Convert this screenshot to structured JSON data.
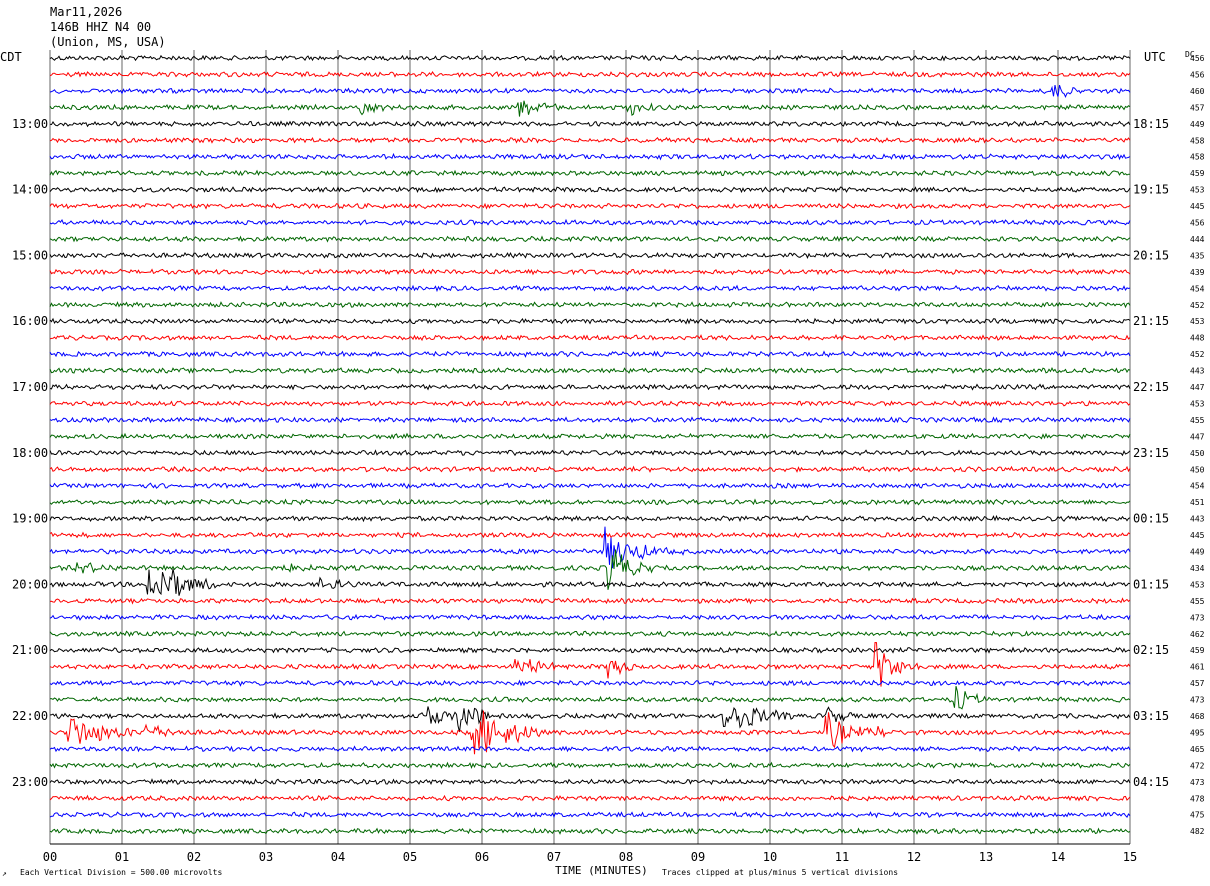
{
  "header": {
    "date": "Mar11,2026",
    "station": "146B HHZ N4 00",
    "location": "(Union, MS, USA)"
  },
  "labels": {
    "left_timezone": "CDT",
    "right_timezone": "UTC",
    "dc_header": "DC",
    "x_axis_title": "TIME (MINUTES)",
    "scale_note": "Each Vertical Division =  500.00 microvolts",
    "clip_note": "Traces clipped at plus/minus 5 vertical divisions"
  },
  "colors": {
    "trace_cycle": [
      "#000000",
      "#ff0000",
      "#0000ff",
      "#006600"
    ],
    "grid": "#000000",
    "background": "#ffffff"
  },
  "chart_data": {
    "type": "line",
    "description_type": "helicorder",
    "traces_per_hour": 4,
    "minutes_per_trace": 15,
    "xlim": [
      0,
      15
    ],
    "x_ticks": [
      "00",
      "01",
      "02",
      "03",
      "04",
      "05",
      "06",
      "07",
      "08",
      "09",
      "10",
      "11",
      "12",
      "13",
      "14",
      "15"
    ],
    "left_hour_labels": [
      {
        "trace": 4,
        "label": "13:00"
      },
      {
        "trace": 8,
        "label": "14:00"
      },
      {
        "trace": 12,
        "label": "15:00"
      },
      {
        "trace": 16,
        "label": "16:00"
      },
      {
        "trace": 20,
        "label": "17:00"
      },
      {
        "trace": 24,
        "label": "18:00"
      },
      {
        "trace": 28,
        "label": "19:00"
      },
      {
        "trace": 32,
        "label": "20:00"
      },
      {
        "trace": 36,
        "label": "21:00"
      },
      {
        "trace": 40,
        "label": "22:00"
      },
      {
        "trace": 44,
        "label": "23:00"
      }
    ],
    "right_hour_labels": [
      {
        "trace": 4,
        "label": "18:15"
      },
      {
        "trace": 8,
        "label": "19:15"
      },
      {
        "trace": 12,
        "label": "20:15"
      },
      {
        "trace": 16,
        "label": "21:15"
      },
      {
        "trace": 20,
        "label": "22:15"
      },
      {
        "trace": 24,
        "label": "23:15"
      },
      {
        "trace": 28,
        "label": "00:15"
      },
      {
        "trace": 32,
        "label": "01:15"
      },
      {
        "trace": 36,
        "label": "02:15"
      },
      {
        "trace": 40,
        "label": "03:15"
      },
      {
        "trace": 44,
        "label": "04:15"
      }
    ],
    "dc_offsets": [
      456,
      456,
      460,
      457,
      449,
      458,
      458,
      459,
      453,
      445,
      456,
      444,
      435,
      439,
      454,
      452,
      453,
      448,
      452,
      443,
      447,
      453,
      455,
      447,
      450,
      450,
      454,
      451,
      443,
      445,
      449,
      434,
      453,
      455,
      473,
      462,
      459,
      461,
      457,
      473,
      468,
      495,
      465,
      472,
      473,
      478,
      475,
      482
    ],
    "events": [
      {
        "trace": 31,
        "minute": 0.4,
        "amp": 0.5,
        "dur": 0.6
      },
      {
        "trace": 31,
        "minute": 3.3,
        "amp": 0.4,
        "dur": 0.4
      },
      {
        "trace": 32,
        "minute": 1.4,
        "amp": 3.0,
        "dur": 0.9
      },
      {
        "trace": 32,
        "minute": 3.8,
        "amp": 0.5,
        "dur": 0.5
      },
      {
        "trace": 30,
        "minute": 7.75,
        "amp": 2.5,
        "dur": 0.5
      },
      {
        "trace": 30,
        "minute": 8.2,
        "amp": 0.6,
        "dur": 0.6
      },
      {
        "trace": 31,
        "minute": 7.8,
        "amp": 2.6,
        "dur": 0.6
      },
      {
        "trace": 3,
        "minute": 4.35,
        "amp": 0.8,
        "dur": 0.3
      },
      {
        "trace": 3,
        "minute": 6.5,
        "amp": 0.9,
        "dur": 0.6
      },
      {
        "trace": 3,
        "minute": 8.05,
        "amp": 0.8,
        "dur": 0.4
      },
      {
        "trace": 2,
        "minute": 13.95,
        "amp": 0.9,
        "dur": 0.4
      },
      {
        "trace": 37,
        "minute": 6.5,
        "amp": 1.0,
        "dur": 0.6
      },
      {
        "trace": 37,
        "minute": 7.8,
        "amp": 1.2,
        "dur": 0.3
      },
      {
        "trace": 37,
        "minute": 11.5,
        "amp": 2.2,
        "dur": 0.6
      },
      {
        "trace": 39,
        "minute": 12.6,
        "amp": 1.2,
        "dur": 0.4
      },
      {
        "trace": 40,
        "minute": 5.2,
        "amp": 1.4,
        "dur": 0.6
      },
      {
        "trace": 40,
        "minute": 5.7,
        "amp": 2.5,
        "dur": 0.4
      },
      {
        "trace": 40,
        "minute": 9.4,
        "amp": 1.8,
        "dur": 0.9
      },
      {
        "trace": 40,
        "minute": 10.8,
        "amp": 0.8,
        "dur": 0.4
      },
      {
        "trace": 41,
        "minute": 0.3,
        "amp": 1.7,
        "dur": 0.9
      },
      {
        "trace": 41,
        "minute": 1.3,
        "amp": 0.8,
        "dur": 0.6
      },
      {
        "trace": 41,
        "minute": 5.9,
        "amp": 3.0,
        "dur": 0.9
      },
      {
        "trace": 41,
        "minute": 10.8,
        "amp": 2.0,
        "dur": 0.6
      },
      {
        "trace": 41,
        "minute": 11.5,
        "amp": 0.5,
        "dur": 0.3
      }
    ]
  }
}
